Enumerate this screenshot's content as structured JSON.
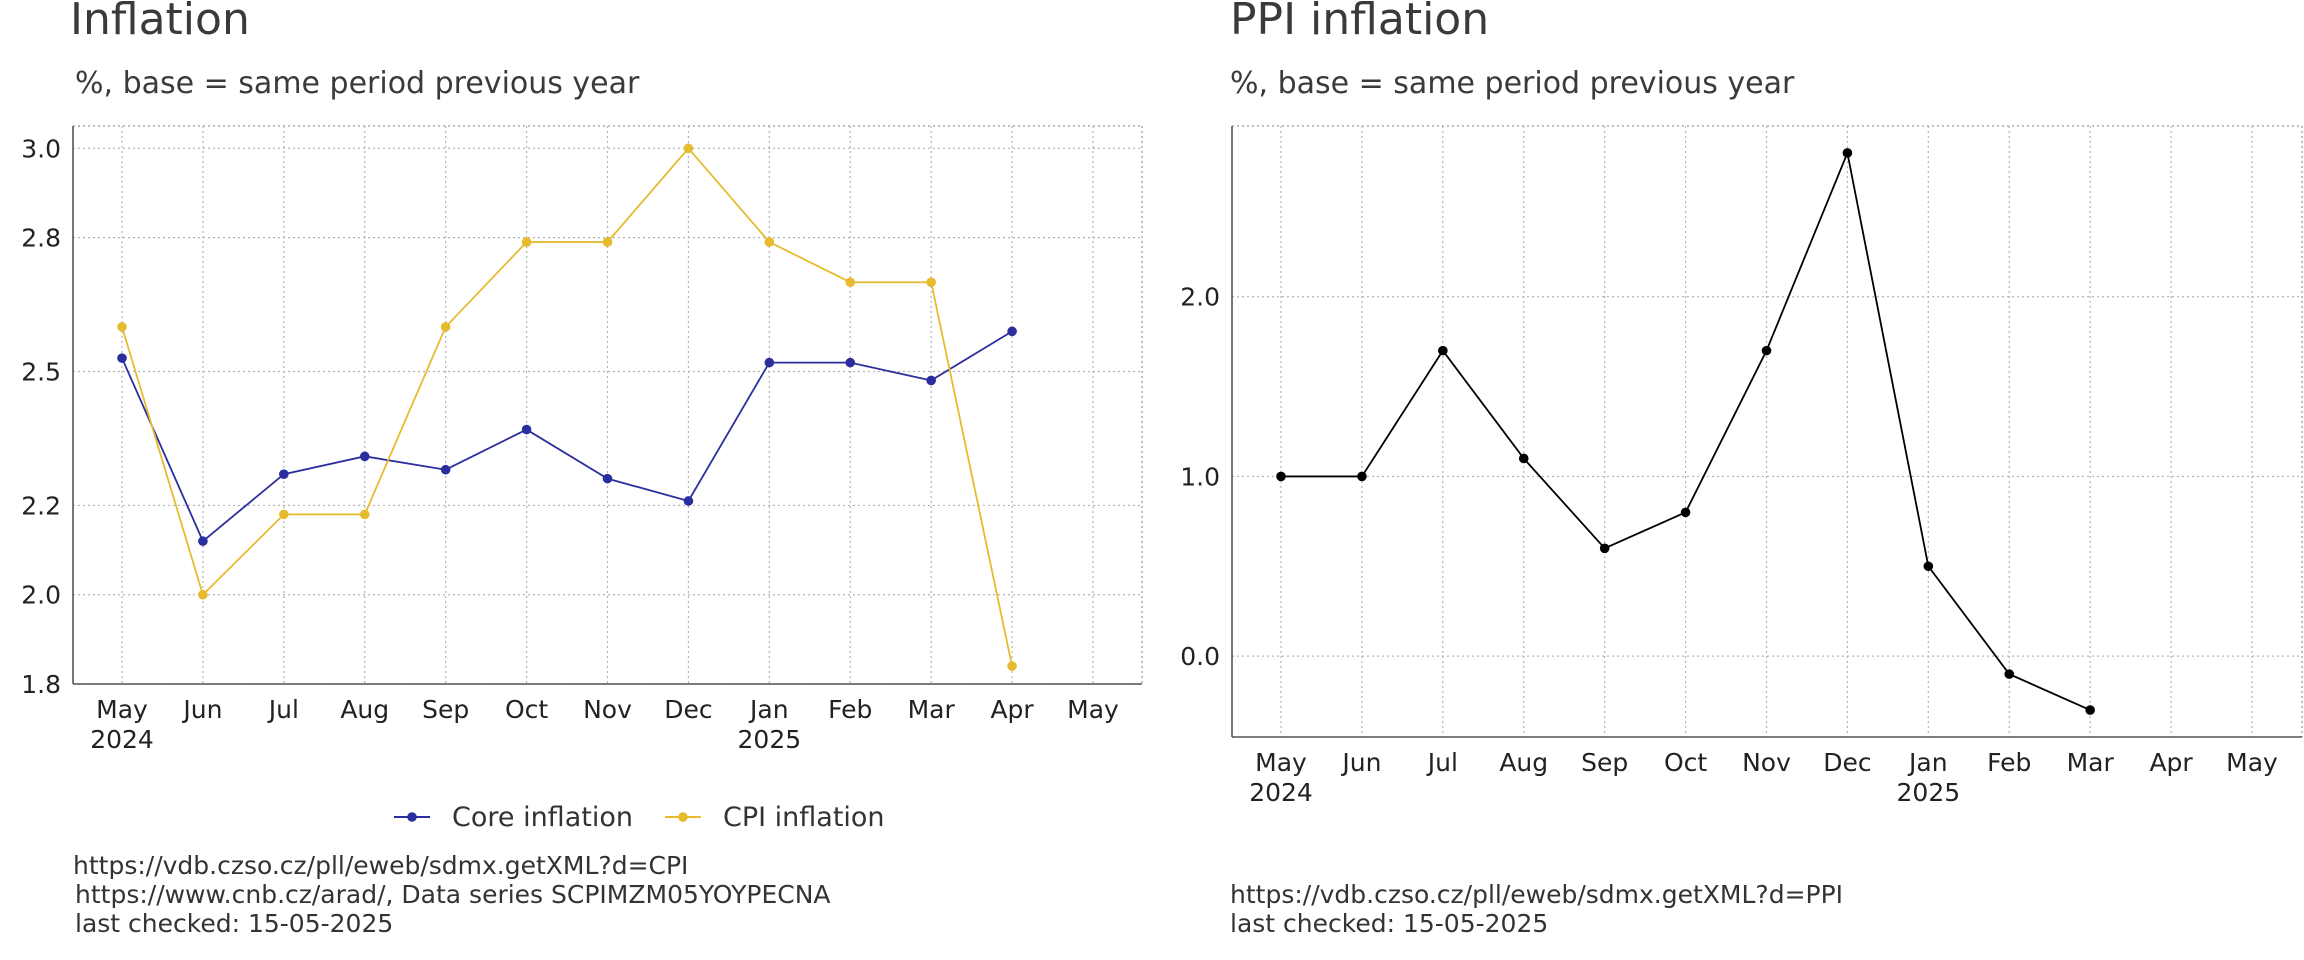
{
  "chart_data": [
    {
      "type": "line",
      "title": "Inflation",
      "subtitle": "%, base = same period previous year",
      "categories": [
        "May",
        "Jun",
        "Jul",
        "Aug",
        "Sep",
        "Oct",
        "Nov",
        "Dec",
        "Jan",
        "Feb",
        "Mar",
        "Apr",
        "May"
      ],
      "year_labels": {
        "0": "2024",
        "8": "2025"
      },
      "ylim": [
        1.8,
        3.05
      ],
      "yticks": [
        3.0,
        2.8,
        2.5,
        2.2,
        2.0,
        1.8
      ],
      "grid": true,
      "legend_position": "bottom",
      "series": [
        {
          "name": "Core inflation",
          "color": "#2b2f9e",
          "values": [
            2.53,
            2.12,
            2.27,
            2.31,
            2.28,
            2.37,
            2.26,
            2.21,
            2.52,
            2.52,
            2.48,
            2.59,
            null
          ]
        },
        {
          "name": "CPI inflation",
          "color": "#e6bb2e",
          "values": [
            2.6,
            2.0,
            2.18,
            2.18,
            2.6,
            2.79,
            2.79,
            3.0,
            2.79,
            2.7,
            2.7,
            1.84,
            null
          ]
        }
      ],
      "sources": [
        "https://vdb.czso.cz/pll/eweb/sdmx.getXML?d=CPI",
        "https://www.cnb.cz/arad/, Data series SCPIMZM05YOYPECNA",
        "last checked: 15-05-2025"
      ]
    },
    {
      "type": "line",
      "title": "PPI inflation",
      "subtitle": "%, base = same period previous year",
      "categories": [
        "May",
        "Jun",
        "Jul",
        "Aug",
        "Sep",
        "Oct",
        "Nov",
        "Dec",
        "Jan",
        "Feb",
        "Mar",
        "Apr",
        "May"
      ],
      "year_labels": {
        "0": "2024",
        "8": "2025"
      },
      "ylim": [
        -0.45,
        2.95
      ],
      "yticks": [
        2.0,
        1.0,
        0.0
      ],
      "grid": true,
      "series": [
        {
          "color": "#000000",
          "values": [
            1.0,
            1.0,
            1.7,
            1.1,
            0.6,
            0.8,
            1.7,
            2.8,
            0.5,
            -0.1,
            -0.3,
            null,
            null
          ]
        }
      ],
      "sources": [
        "https://vdb.czso.cz/pll/eweb/sdmx.getXML?d=PPI",
        "last checked: 15-05-2025"
      ]
    }
  ]
}
